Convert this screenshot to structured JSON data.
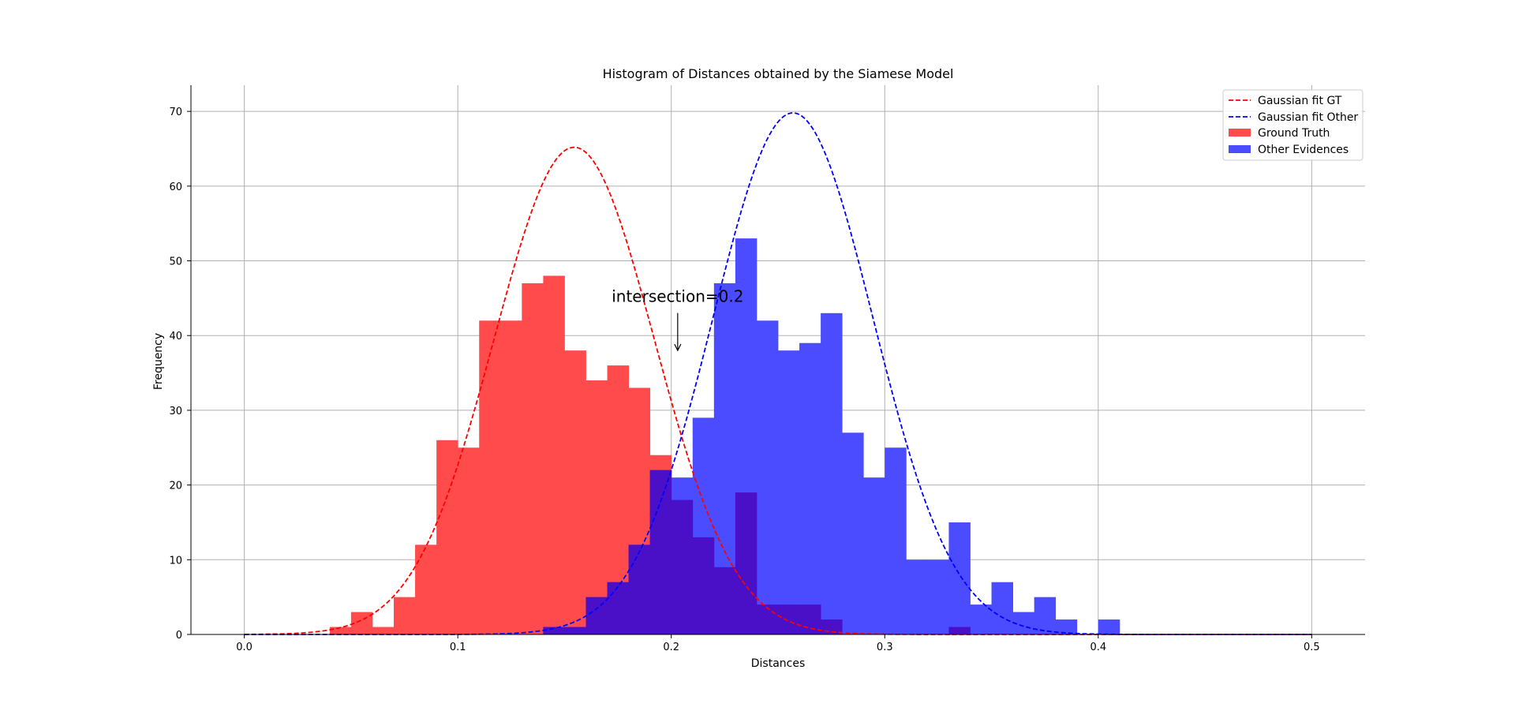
{
  "chart_data": {
    "type": "histogram",
    "title": "Histogram of Distances obtained by the Siamese Model",
    "xlabel": "Distances",
    "ylabel": "Frequency",
    "xlim": [
      -0.025,
      0.525
    ],
    "ylim": [
      0,
      73.5
    ],
    "xticks": [
      "0.0",
      "0.1",
      "0.2",
      "0.3",
      "0.4",
      "0.5"
    ],
    "yticks": [
      "0",
      "10",
      "20",
      "30",
      "40",
      "50",
      "60",
      "70"
    ],
    "grid": true,
    "legend_position": "top-right",
    "bin_width": 0.01,
    "series": [
      {
        "name": "Ground Truth",
        "kind": "hist",
        "color": "#ff4b4b",
        "bin_starts": [
          0.04,
          0.05,
          0.06,
          0.07,
          0.08,
          0.09,
          0.1,
          0.11,
          0.12,
          0.13,
          0.14,
          0.15,
          0.16,
          0.17,
          0.18,
          0.19,
          0.2,
          0.21,
          0.22,
          0.23,
          0.24,
          0.25,
          0.26,
          0.27,
          0.33
        ],
        "values": [
          1,
          3,
          1,
          5,
          12,
          26,
          25,
          42,
          42,
          47,
          48,
          38,
          34,
          36,
          33,
          24,
          18,
          13,
          9,
          19,
          4,
          4,
          4,
          2,
          1
        ]
      },
      {
        "name": "Other Evidences",
        "kind": "hist",
        "color": "#4b4bff",
        "bin_starts": [
          0.14,
          0.15,
          0.16,
          0.17,
          0.18,
          0.19,
          0.2,
          0.21,
          0.22,
          0.23,
          0.24,
          0.25,
          0.26,
          0.27,
          0.28,
          0.29,
          0.3,
          0.31,
          0.32,
          0.33,
          0.34,
          0.35,
          0.36,
          0.37,
          0.38,
          0.39,
          0.4
        ],
        "values": [
          1,
          1,
          5,
          7,
          12,
          22,
          21,
          29,
          47,
          53,
          42,
          38,
          39,
          43,
          27,
          21,
          25,
          10,
          10,
          15,
          4,
          7,
          3,
          5,
          2,
          0,
          2
        ]
      },
      {
        "name": "Gaussian fit GT",
        "kind": "line",
        "color": "#ff0000",
        "dash": true,
        "mu": 0.1545,
        "sigma": 0.0375,
        "peak": 65.2,
        "x_range": [
          0.0,
          0.5
        ]
      },
      {
        "name": "Gaussian fit Other",
        "kind": "line",
        "color": "#0000ff",
        "dash": true,
        "mu": 0.257,
        "sigma": 0.0375,
        "peak": 69.8,
        "x_range": [
          0.0,
          0.5
        ]
      }
    ],
    "overlap_color": "#4a10c8",
    "annotation": {
      "text": "intersection=0.2",
      "point": [
        0.203,
        38.0
      ],
      "text_anchor": [
        0.203,
        44.5
      ]
    }
  }
}
